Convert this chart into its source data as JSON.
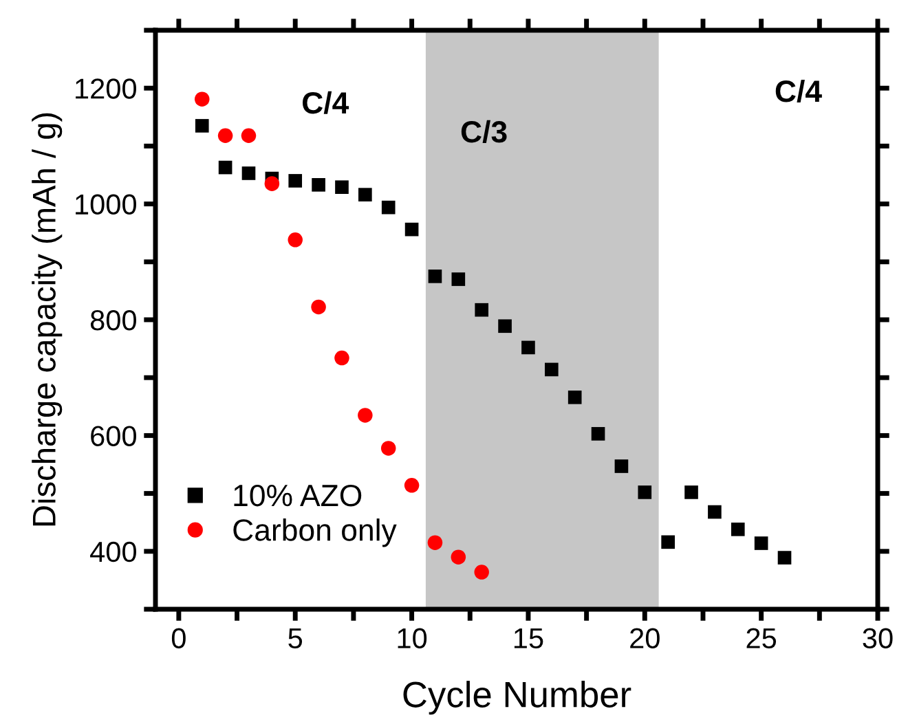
{
  "chart_data": {
    "type": "scatter",
    "xlabel": "Cycle Number",
    "ylabel": "Discharge capacity (mAh / g)",
    "xlim": [
      -1,
      30
    ],
    "xticks": [
      0,
      {
        "value": 2.5,
        "label": null
      },
      5,
      {
        "value": 7.5,
        "label": null
      },
      10,
      {
        "value": 12.5,
        "label": null
      },
      15,
      {
        "value": 17.5,
        "label": null
      },
      20,
      {
        "value": 22.5,
        "label": null
      },
      25,
      {
        "value": 27.5,
        "label": null
      },
      30
    ],
    "ylim": [
      300,
      1300
    ],
    "yticks": [
      {
        "value": 300,
        "label": null
      },
      400,
      {
        "value": 500,
        "label": null
      },
      600,
      {
        "value": 700,
        "label": null
      },
      800,
      {
        "value": 900,
        "label": null
      },
      1000,
      {
        "value": 1100,
        "label": null
      },
      1200,
      {
        "value": 1300,
        "label": null
      }
    ],
    "grid": false,
    "legend": "bottom left",
    "bands": [
      {
        "axis": "x",
        "from": 10.6,
        "to": 20.6,
        "color": "#c6c6c6",
        "label": "C/3"
      }
    ],
    "annotations": [
      "C/4",
      "C/4"
    ],
    "series": [
      {
        "name": "10% AZO",
        "color": "#000000",
        "marker": "square",
        "x": [
          1,
          2,
          3,
          4,
          5,
          6,
          7,
          8,
          9,
          10,
          11,
          12,
          13,
          14,
          15,
          16,
          17,
          18,
          19,
          20,
          21,
          22,
          23,
          24,
          25,
          26
        ],
        "values": [
          1135,
          1063,
          1053,
          1044,
          1040,
          1033,
          1029,
          1016,
          994,
          956,
          875,
          870,
          817,
          789,
          752,
          714,
          666,
          603,
          547,
          502,
          416,
          502,
          468,
          438,
          414,
          389
        ]
      },
      {
        "name": "Carbon only",
        "color": "#ff0000",
        "marker": "circle",
        "x": [
          1,
          2,
          3,
          4,
          5,
          6,
          7,
          8,
          9,
          10,
          11,
          12,
          13
        ],
        "values": [
          1181,
          1118,
          1118,
          1035,
          938,
          822,
          734,
          635,
          578,
          514,
          415,
          390,
          364
        ]
      }
    ]
  }
}
